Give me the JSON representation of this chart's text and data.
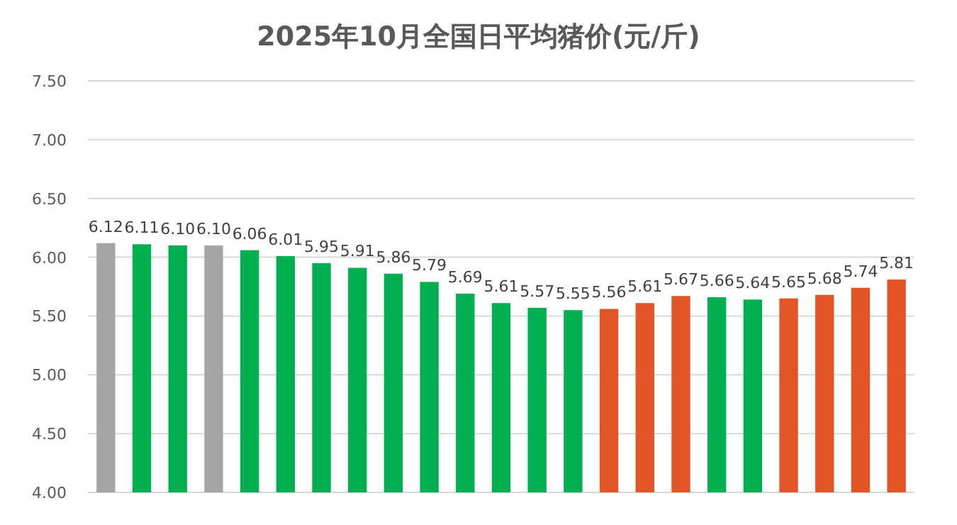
{
  "chart_data": {
    "type": "bar",
    "title": "2025年10月全国日平均猪价(元/斤)",
    "categories": [
      null,
      null,
      null,
      null,
      null,
      null,
      null,
      null,
      null,
      null,
      null,
      null,
      null,
      null,
      null,
      null,
      null,
      null,
      null,
      null,
      null,
      null,
      null
    ],
    "values": [
      6.12,
      6.11,
      6.1,
      6.1,
      6.06,
      6.01,
      5.95,
      5.91,
      5.86,
      5.79,
      5.69,
      5.61,
      5.57,
      5.55,
      5.56,
      5.61,
      5.67,
      5.66,
      5.64,
      5.65,
      5.68,
      5.74,
      5.81
    ],
    "colors": [
      "#a5a5a5",
      "#00b050",
      "#00b050",
      "#a5a5a5",
      "#00b050",
      "#00b050",
      "#00b050",
      "#00b050",
      "#00b050",
      "#00b050",
      "#00b050",
      "#00b050",
      "#00b050",
      "#00b050",
      "#e15527",
      "#e15527",
      "#e15527",
      "#00b050",
      "#00b050",
      "#e15527",
      "#e15527",
      "#e15527",
      "#e15527"
    ],
    "value_labels": [
      "6.12",
      "6.11",
      "6.10",
      "6.10",
      "6.06",
      "6.01",
      "5.95",
      "5.91",
      "5.86",
      "5.79",
      "5.69",
      "5.61",
      "5.57",
      "5.55",
      "5.56",
      "5.61",
      "5.67",
      "5.66",
      "5.64",
      "5.65",
      "5.68",
      "5.74",
      "5.81"
    ],
    "ylim": [
      4.0,
      7.5
    ],
    "yticks": [
      {
        "value": 4.0,
        "label": "4.00"
      },
      {
        "value": 4.5,
        "label": "4.50"
      },
      {
        "value": 5.0,
        "label": "5.00"
      },
      {
        "value": 5.5,
        "label": "5.50"
      },
      {
        "value": 6.0,
        "label": "6.00"
      },
      {
        "value": 6.5,
        "label": "6.50"
      },
      {
        "value": 7.0,
        "label": "7.00"
      },
      {
        "value": 7.5,
        "label": "7.50"
      }
    ],
    "grid": "y"
  }
}
